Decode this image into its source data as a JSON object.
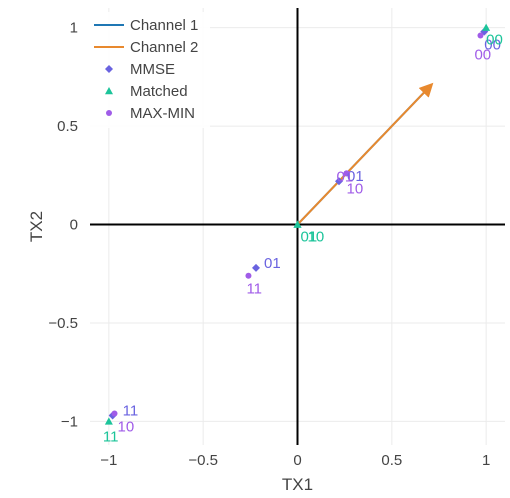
{
  "chart_data": {
    "type": "scatter",
    "xlabel": "TX1",
    "ylabel": "TX2",
    "xlim": [
      -1.1,
      1.1
    ],
    "ylim": [
      -1.12,
      1.1
    ],
    "x_ticks": [
      -1,
      -0.5,
      0,
      0.5,
      1
    ],
    "x_tick_labels": [
      "−1",
      "−0.5",
      "0",
      "0.5",
      "1"
    ],
    "y_ticks": [
      -1,
      -0.5,
      0,
      0.5,
      1
    ],
    "y_tick_labels": [
      "−1",
      "−0.5",
      "0",
      "0.5",
      "1"
    ],
    "grid": true,
    "zero_lines": true,
    "legend_position": "top-left",
    "legend": [
      "Channel 1",
      "Channel 2",
      "MMSE",
      "Matched",
      "MAX-MIN"
    ],
    "colors": {
      "channel1": "#1f77b4",
      "channel2": "#e8892e",
      "mmse": "#6a63e0",
      "matched": "#1cc49a",
      "maxmin": "#a05ce8",
      "zero_line": "#000000",
      "grid": "#ebebeb"
    },
    "arrows": [
      {
        "name": "Channel 1",
        "from": [
          0,
          0
        ],
        "to": [
          0.71,
          0.71
        ]
      },
      {
        "name": "Channel 2",
        "from": [
          0,
          0
        ],
        "to": [
          0.71,
          0.71
        ]
      }
    ],
    "series": [
      {
        "name": "MMSE",
        "marker": "diamond",
        "points": [
          {
            "x": 0.99,
            "y": 0.98,
            "label": "00"
          },
          {
            "x": 0.22,
            "y": 0.22,
            "label": "01"
          },
          {
            "x": -0.22,
            "y": -0.22,
            "label": "01"
          },
          {
            "x": -0.98,
            "y": -0.97,
            "label": "11"
          }
        ]
      },
      {
        "name": "Matched",
        "marker": "triangle-up",
        "points": [
          {
            "x": 1.0,
            "y": 1.0,
            "label": "00"
          },
          {
            "x": 0.0,
            "y": 0.0,
            "label": "01"
          },
          {
            "x": 0.0,
            "y": 0.0,
            "label": "10"
          },
          {
            "x": -1.0,
            "y": -1.0,
            "label": "11"
          }
        ]
      },
      {
        "name": "MAX-MIN",
        "marker": "circle",
        "points": [
          {
            "x": 0.97,
            "y": 0.96,
            "label": "00"
          },
          {
            "x": 0.26,
            "y": 0.26,
            "label": "01"
          },
          {
            "x": 0.26,
            "y": 0.26,
            "label": "10"
          },
          {
            "x": -0.26,
            "y": -0.26,
            "label": "11"
          },
          {
            "x": -0.97,
            "y": -0.96,
            "label": "10"
          }
        ]
      }
    ]
  }
}
